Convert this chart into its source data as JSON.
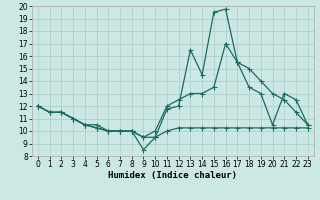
{
  "xlabel": "Humidex (Indice chaleur)",
  "bg_color": "#cce8e4",
  "line_color": "#1a6b60",
  "grid_color": "#aaccc8",
  "spine_color": "#aaaaaa",
  "xlim": [
    -0.5,
    23.5
  ],
  "ylim": [
    8,
    20
  ],
  "xticks": [
    0,
    1,
    2,
    3,
    4,
    5,
    6,
    7,
    8,
    9,
    10,
    11,
    12,
    13,
    14,
    15,
    16,
    17,
    18,
    19,
    20,
    21,
    22,
    23
  ],
  "yticks": [
    8,
    9,
    10,
    11,
    12,
    13,
    14,
    15,
    16,
    17,
    18,
    19,
    20
  ],
  "line1_x": [
    0,
    1,
    2,
    3,
    4,
    5,
    6,
    7,
    8,
    9,
    10,
    11,
    12,
    13,
    14,
    15,
    16,
    17,
    18,
    19,
    20,
    21,
    22,
    23
  ],
  "line1_y": [
    12,
    11.5,
    11.5,
    11.0,
    10.5,
    10.5,
    10.0,
    10.0,
    10.0,
    9.5,
    9.5,
    11.75,
    12.0,
    16.5,
    14.5,
    19.5,
    19.75,
    15.5,
    15.0,
    14.0,
    13.0,
    12.5,
    11.5,
    10.5
  ],
  "line2_x": [
    0,
    1,
    2,
    3,
    4,
    5,
    6,
    7,
    8,
    9,
    10,
    11,
    12,
    13,
    14,
    15,
    16,
    17,
    18,
    19,
    20,
    21,
    22,
    23
  ],
  "line2_y": [
    12,
    11.5,
    11.5,
    11.0,
    10.5,
    10.25,
    10.0,
    10.0,
    10.0,
    9.5,
    10.0,
    12.0,
    12.5,
    13.0,
    13.0,
    13.5,
    17.0,
    15.5,
    13.5,
    13.0,
    10.5,
    13.0,
    12.5,
    10.5
  ],
  "line3_x": [
    0,
    1,
    2,
    3,
    4,
    5,
    6,
    7,
    8,
    9,
    10,
    11,
    12,
    13,
    14,
    15,
    16,
    17,
    18,
    19,
    20,
    21,
    22,
    23
  ],
  "line3_y": [
    12,
    11.5,
    11.5,
    11.0,
    10.5,
    10.25,
    10.0,
    10.0,
    10.0,
    8.5,
    9.5,
    10.0,
    10.25,
    10.25,
    10.25,
    10.25,
    10.25,
    10.25,
    10.25,
    10.25,
    10.25,
    10.25,
    10.25,
    10.25
  ],
  "xlabel_fontsize": 6.5,
  "tick_fontsize": 5.5,
  "linewidth": 0.9,
  "markersize": 2.0
}
